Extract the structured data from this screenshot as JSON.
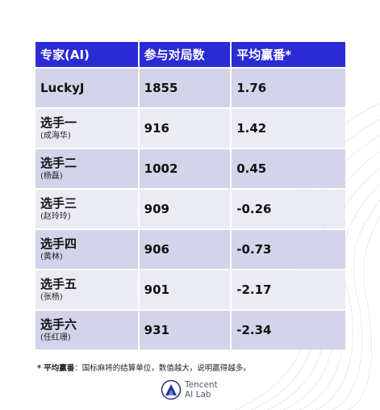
{
  "table": {
    "headers": [
      "专家(AI)",
      "参与对局数",
      "平均赢番*"
    ],
    "rows": [
      {
        "name": "LuckyJ",
        "sub": "",
        "games": "1855",
        "avg": "1.76"
      },
      {
        "name": "选手一",
        "sub": "(成海华)",
        "games": "916",
        "avg": "1.42"
      },
      {
        "name": "选手二",
        "sub": "(杨磊)",
        "games": "1002",
        "avg": "0.45"
      },
      {
        "name": "选手三",
        "sub": "(赵玲玲)",
        "games": "909",
        "avg": "-0.26"
      },
      {
        "name": "选手四",
        "sub": "(黄林)",
        "games": "906",
        "avg": "-0.73"
      },
      {
        "name": "选手五",
        "sub": "(张杨)",
        "games": "901",
        "avg": "-2.17"
      },
      {
        "name": "选手六",
        "sub": "(任红珊)",
        "games": "931",
        "avg": "-2.34"
      }
    ]
  },
  "footnote": {
    "term": "* 平均赢番",
    "text": "：国标麻将的结算单位，数值越大，说明赢得越多。"
  },
  "brand": {
    "line1": "Tencent",
    "line2": "AI Lab"
  },
  "colors": {
    "header_bg": "#2b2bd6",
    "row_dark": "#d3d3ea",
    "row_light": "#ebebf4"
  }
}
